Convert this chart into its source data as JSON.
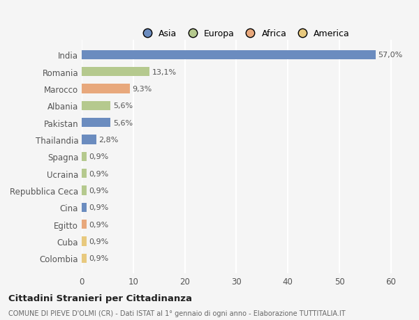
{
  "categories": [
    "India",
    "Romania",
    "Marocco",
    "Albania",
    "Pakistan",
    "Thailandia",
    "Spagna",
    "Ucraina",
    "Repubblica Ceca",
    "Cina",
    "Egitto",
    "Cuba",
    "Colombia"
  ],
  "values": [
    57.0,
    13.1,
    9.3,
    5.6,
    5.6,
    2.8,
    0.9,
    0.9,
    0.9,
    0.9,
    0.9,
    0.9,
    0.9
  ],
  "labels": [
    "57,0%",
    "13,1%",
    "9,3%",
    "5,6%",
    "5,6%",
    "2,8%",
    "0,9%",
    "0,9%",
    "0,9%",
    "0,9%",
    "0,9%",
    "0,9%",
    "0,9%"
  ],
  "colors": [
    "#6b8cbf",
    "#b5c98e",
    "#e8a87c",
    "#b5c98e",
    "#6b8cbf",
    "#6b8cbf",
    "#b5c98e",
    "#b5c98e",
    "#b5c98e",
    "#6b8cbf",
    "#e8a87c",
    "#e8c97e",
    "#e8c97e"
  ],
  "legend_labels": [
    "Asia",
    "Europa",
    "Africa",
    "America"
  ],
  "legend_colors": [
    "#6b8cbf",
    "#b5c98e",
    "#e8a87c",
    "#e8c97e"
  ],
  "title": "Cittadini Stranieri per Cittadinanza",
  "subtitle": "COMUNE DI PIEVE D'OLMI (CR) - Dati ISTAT al 1° gennaio di ogni anno - Elaborazione TUTTITALIA.IT",
  "xlim": [
    0,
    63
  ],
  "xticks": [
    0,
    10,
    20,
    30,
    40,
    50,
    60
  ],
  "background_color": "#f5f5f5",
  "grid_color": "#ffffff",
  "bar_height": 0.55
}
